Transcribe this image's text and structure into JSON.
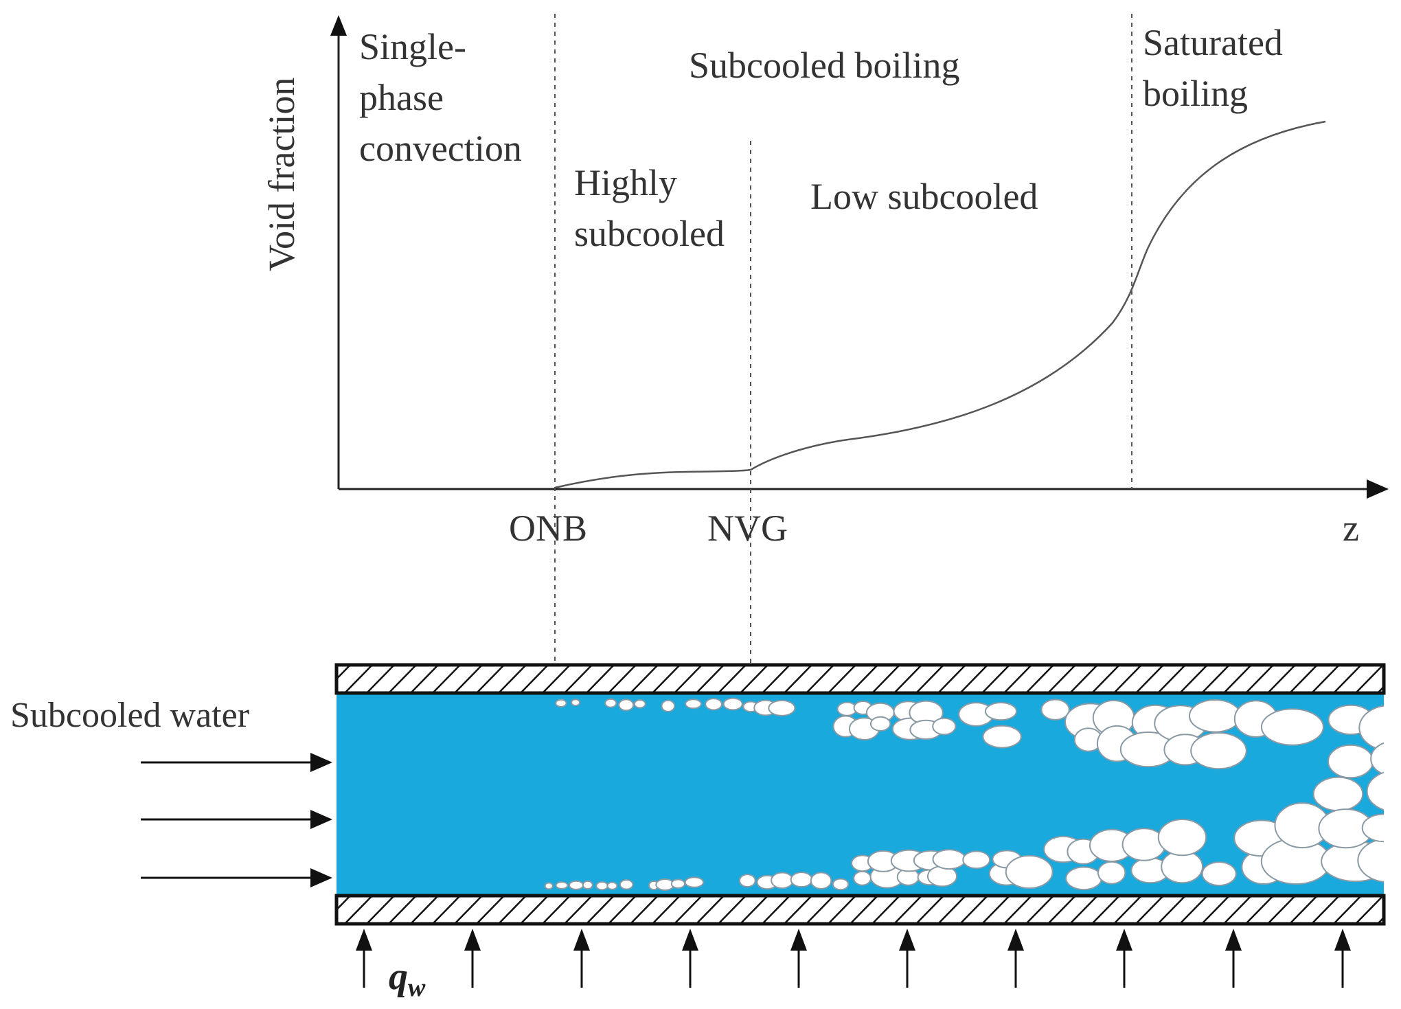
{
  "figure": {
    "y_axis_label": "Void fraction",
    "x_axis_label": "z",
    "markers": [
      "ONB",
      "NVG"
    ],
    "regions": {
      "single_phase": [
        "Single-",
        "phase",
        "convection"
      ],
      "subcooled_boiling": "Subcooled boiling",
      "highly_subcooled": [
        "Highly",
        "subcooled"
      ],
      "low_subcooled": "Low subcooled",
      "saturated_boiling": [
        "Saturated",
        "boiling"
      ]
    },
    "inlet_label": "Subcooled water",
    "heat_flux_symbol": "q",
    "heat_flux_subscript": "w"
  },
  "colors": {
    "water": "#1aa9dc",
    "bubble": "#ffffff",
    "axis": "#222222"
  }
}
